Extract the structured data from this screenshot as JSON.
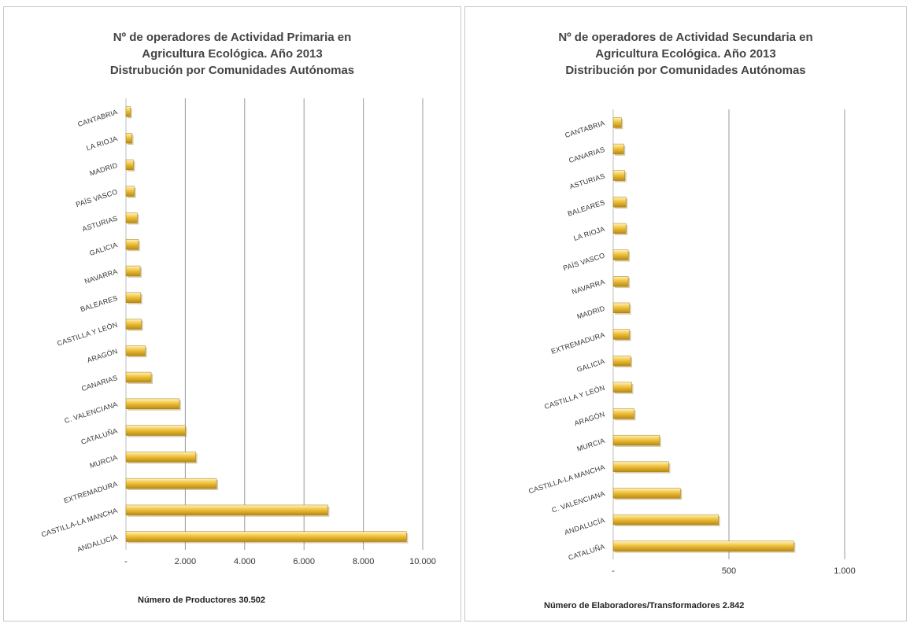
{
  "chart_data": [
    {
      "type": "bar",
      "orientation": "horizontal",
      "title_lines": [
        "Nº de operadores de Actividad Primaria en",
        "Agricultura Ecológica. Año 2013",
        "Distrubución por Comunidades Autónomas"
      ],
      "categories": [
        "CANTABRIA",
        "LA RIOJA",
        "MADRID",
        "PAÍS VASCO",
        "ASTURIAS",
        "GALICIA",
        "NAVARRA",
        "BALEARES",
        "CASTILLA Y LEÓN",
        "ARAGÓN",
        "CANARIAS",
        "C. VALENCIANA",
        "CATALUÑA",
        "MURCIA",
        "EXTREMADURA",
        "CASTILLA-LA MANCHA",
        "ANDALUCÍA"
      ],
      "values": [
        150,
        200,
        250,
        280,
        380,
        420,
        480,
        500,
        520,
        650,
        850,
        1800,
        2000,
        2350,
        3050,
        6800,
        9450
      ],
      "xlim": [
        0,
        10000
      ],
      "xticks": [
        0,
        2000,
        4000,
        6000,
        8000,
        10000
      ],
      "xtick_labels": [
        "-",
        "2.000",
        "4.000",
        "6.000",
        "8.000",
        "10.000"
      ],
      "grid": "vertical",
      "bar_color": "#f0c23c",
      "footer": "Número de Productores 30.502"
    },
    {
      "type": "bar",
      "orientation": "horizontal",
      "title_lines": [
        "Nº de operadores de Actividad Secundaria en",
        "Agricultura Ecológica. Año 2013",
        "Distribución por Comunidades  Autónomas"
      ],
      "categories": [
        "CANTABRIA",
        "CANARIAS",
        "ASTURIAS",
        "BALEARES",
        "LA RIOJA",
        "PAÍS VASCO",
        "NAVARRA",
        "MADRID",
        "EXTREMADURA",
        "GALICIA",
        "CASTILLA Y LEÓN",
        "ARAGÓN",
        "MURCIA",
        "CASTILLA-LA MANCHA",
        "C. VALENCIANA",
        "ANDALUCÍA",
        "CATALUÑA"
      ],
      "values": [
        35,
        45,
        50,
        55,
        55,
        65,
        65,
        70,
        70,
        75,
        80,
        90,
        200,
        240,
        290,
        455,
        780
      ],
      "xlim": [
        0,
        1000
      ],
      "xticks": [
        0,
        500,
        1000
      ],
      "xtick_labels": [
        "-",
        "500",
        "1.000"
      ],
      "grid": "vertical",
      "bar_color": "#f0c23c",
      "footer": "Número de Elaboradores/Transformadores  2.842"
    }
  ]
}
